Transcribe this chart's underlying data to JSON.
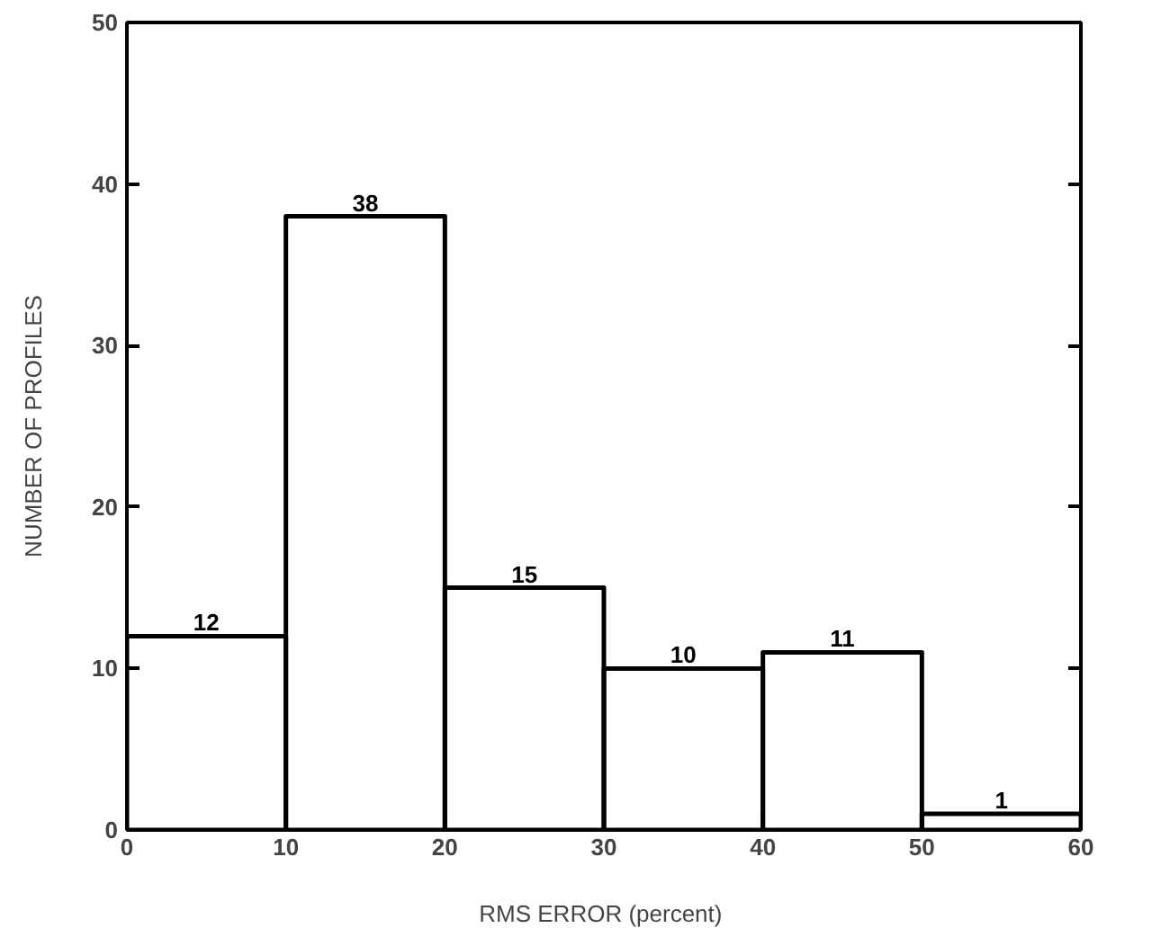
{
  "chart_data": {
    "type": "histogram",
    "xlabel": "RMS ERROR  (percent)",
    "ylabel": "NUMBER OF PROFILES",
    "bins": [
      0,
      10,
      20,
      30,
      40,
      50,
      60
    ],
    "values": [
      12,
      38,
      15,
      10,
      11,
      1
    ],
    "color": "#000000",
    "data_labels": true,
    "grid": false,
    "xlim": [
      0,
      60
    ],
    "xticks": [
      0,
      10,
      20,
      30,
      40,
      50,
      60
    ],
    "ylim": [
      0,
      50
    ],
    "yticks": [
      0,
      10,
      20,
      30,
      40,
      50
    ]
  }
}
